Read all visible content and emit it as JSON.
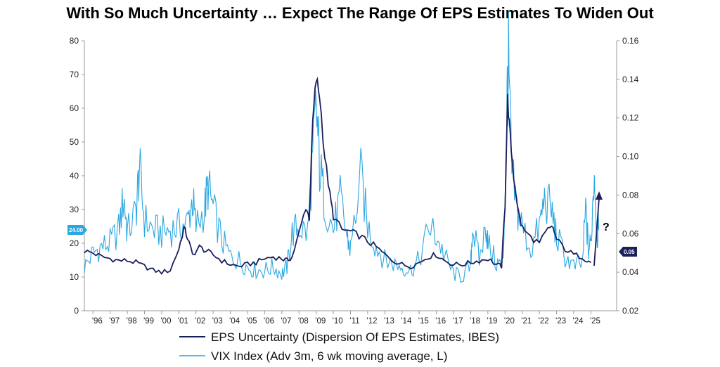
{
  "chart_data": {
    "type": "line",
    "title": "With So Much Uncertainty … Expect The Range Of EPS Estimates To Widen Out",
    "y_left": {
      "ticks": [
        "0",
        "10",
        "20",
        "30",
        "40",
        "50",
        "60",
        "70",
        "80"
      ],
      "range": [
        0,
        80
      ]
    },
    "y_right": {
      "ticks": [
        "0.02",
        "0.04",
        "0.06",
        "0.08",
        "0.10",
        "0.12",
        "0.14",
        "0.16"
      ],
      "range": [
        0.02,
        0.16
      ]
    },
    "x": {
      "range": [
        1995.5,
        2026.5
      ],
      "tick_labels": [
        "'96",
        "'97",
        "'98",
        "'99",
        "'00",
        "'01",
        "'02",
        "'03",
        "'04",
        "'05",
        "'06",
        "'07",
        "'08",
        "'09",
        "'10",
        "'11",
        "'12",
        "'13",
        "'14",
        "'15",
        "'16",
        "'17",
        "'18",
        "'19",
        "'20",
        "'21",
        "'22",
        "'23",
        "'24",
        "'25"
      ]
    },
    "last_value_badges": {
      "left": "24.00",
      "right": "0.05"
    },
    "annotation": "?",
    "series": [
      {
        "name": "EPS Uncertainty (Dispersion Of EPS Estimates, IBES",
        "axis": "right",
        "color": "#1b1f5e",
        "points": [
          [
            1995.5,
            0.051
          ],
          [
            1996.0,
            0.05
          ],
          [
            1996.5,
            0.048
          ],
          [
            1997.0,
            0.047
          ],
          [
            1997.5,
            0.046
          ],
          [
            1998.0,
            0.046
          ],
          [
            1998.5,
            0.045
          ],
          [
            1999.0,
            0.043
          ],
          [
            1999.5,
            0.041
          ],
          [
            2000.0,
            0.04
          ],
          [
            2000.5,
            0.041
          ],
          [
            2001.0,
            0.052
          ],
          [
            2001.3,
            0.063
          ],
          [
            2001.5,
            0.058
          ],
          [
            2001.8,
            0.049
          ],
          [
            2002.2,
            0.053
          ],
          [
            2002.6,
            0.051
          ],
          [
            2003.0,
            0.049
          ],
          [
            2003.5,
            0.046
          ],
          [
            2004.0,
            0.044
          ],
          [
            2004.5,
            0.043
          ],
          [
            2005.0,
            0.044
          ],
          [
            2005.5,
            0.045
          ],
          [
            2006.0,
            0.047
          ],
          [
            2006.5,
            0.048
          ],
          [
            2007.0,
            0.047
          ],
          [
            2007.3,
            0.046
          ],
          [
            2007.6,
            0.048
          ],
          [
            2008.0,
            0.06
          ],
          [
            2008.4,
            0.074
          ],
          [
            2008.6,
            0.068
          ],
          [
            2008.8,
            0.118
          ],
          [
            2009.0,
            0.14
          ],
          [
            2009.2,
            0.132
          ],
          [
            2009.5,
            0.1
          ],
          [
            2009.8,
            0.08
          ],
          [
            2010.0,
            0.069
          ],
          [
            2010.5,
            0.062
          ],
          [
            2011.0,
            0.061
          ],
          [
            2011.5,
            0.059
          ],
          [
            2012.0,
            0.056
          ],
          [
            2012.5,
            0.053
          ],
          [
            2013.0,
            0.049
          ],
          [
            2013.5,
            0.046
          ],
          [
            2014.0,
            0.044
          ],
          [
            2014.5,
            0.043
          ],
          [
            2015.0,
            0.045
          ],
          [
            2015.5,
            0.048
          ],
          [
            2016.0,
            0.049
          ],
          [
            2016.5,
            0.046
          ],
          [
            2017.0,
            0.044
          ],
          [
            2017.5,
            0.044
          ],
          [
            2018.0,
            0.045
          ],
          [
            2018.5,
            0.046
          ],
          [
            2019.0,
            0.047
          ],
          [
            2019.5,
            0.044
          ],
          [
            2019.8,
            0.043
          ],
          [
            2020.0,
            0.075
          ],
          [
            2020.15,
            0.13
          ],
          [
            2020.3,
            0.11
          ],
          [
            2020.5,
            0.09
          ],
          [
            2020.8,
            0.07
          ],
          [
            2021.0,
            0.063
          ],
          [
            2021.5,
            0.058
          ],
          [
            2022.0,
            0.055
          ],
          [
            2022.5,
            0.062
          ],
          [
            2022.8,
            0.063
          ],
          [
            2023.0,
            0.057
          ],
          [
            2023.5,
            0.052
          ],
          [
            2024.0,
            0.049
          ],
          [
            2024.5,
            0.048
          ],
          [
            2024.8,
            0.046
          ],
          [
            2025.0,
            0.045
          ]
        ]
      },
      {
        "name": "VIX Index (Adv 3m, 6 wk moving average, L)",
        "axis": "left",
        "color": "#2aa7e0",
        "points": [
          [
            1995.5,
            13
          ],
          [
            1996.0,
            17
          ],
          [
            1996.5,
            19
          ],
          [
            1997.0,
            20
          ],
          [
            1997.5,
            24
          ],
          [
            1997.8,
            34
          ],
          [
            1998.0,
            23
          ],
          [
            1998.5,
            29
          ],
          [
            1998.7,
            42
          ],
          [
            1999.0,
            27
          ],
          [
            1999.5,
            24
          ],
          [
            2000.0,
            23
          ],
          [
            2000.5,
            24
          ],
          [
            2001.0,
            25
          ],
          [
            2001.5,
            26
          ],
          [
            2001.8,
            33
          ],
          [
            2002.0,
            25
          ],
          [
            2002.5,
            30
          ],
          [
            2002.7,
            37
          ],
          [
            2003.0,
            30
          ],
          [
            2003.5,
            21
          ],
          [
            2004.0,
            16
          ],
          [
            2004.5,
            15
          ],
          [
            2005.0,
            13
          ],
          [
            2005.5,
            12
          ],
          [
            2006.0,
            12
          ],
          [
            2006.5,
            13
          ],
          [
            2007.0,
            11
          ],
          [
            2007.3,
            13
          ],
          [
            2007.6,
            23
          ],
          [
            2008.0,
            25
          ],
          [
            2008.5,
            23
          ],
          [
            2008.8,
            45
          ],
          [
            2009.0,
            60
          ],
          [
            2009.2,
            43
          ],
          [
            2009.5,
            32
          ],
          [
            2010.0,
            24
          ],
          [
            2010.4,
            33
          ],
          [
            2010.8,
            22
          ],
          [
            2011.0,
            18
          ],
          [
            2011.6,
            40
          ],
          [
            2012.0,
            25
          ],
          [
            2012.5,
            19
          ],
          [
            2013.0,
            15
          ],
          [
            2013.5,
            14
          ],
          [
            2014.0,
            13
          ],
          [
            2014.5,
            12
          ],
          [
            2015.0,
            15
          ],
          [
            2015.6,
            25
          ],
          [
            2016.0,
            22
          ],
          [
            2016.5,
            16
          ],
          [
            2017.0,
            11
          ],
          [
            2017.5,
            10
          ],
          [
            2018.0,
            13
          ],
          [
            2018.1,
            25
          ],
          [
            2018.5,
            15
          ],
          [
            2018.9,
            25
          ],
          [
            2019.0,
            20
          ],
          [
            2019.5,
            14
          ],
          [
            2019.9,
            14
          ],
          [
            2020.1,
            60
          ],
          [
            2020.2,
            73
          ],
          [
            2020.4,
            40
          ],
          [
            2020.7,
            30
          ],
          [
            2021.0,
            25
          ],
          [
            2021.5,
            18
          ],
          [
            2022.0,
            25
          ],
          [
            2022.3,
            33
          ],
          [
            2022.7,
            30
          ],
          [
            2023.0,
            22
          ],
          [
            2023.5,
            16
          ],
          [
            2024.0,
            13
          ],
          [
            2024.5,
            14
          ],
          [
            2024.7,
            30
          ],
          [
            2024.85,
            18
          ],
          [
            2025.0,
            20
          ],
          [
            2025.2,
            42
          ],
          [
            2025.35,
            22
          ],
          [
            2025.45,
            24
          ]
        ]
      }
    ]
  },
  "legend": {
    "eps_label": "EPS Uncertainty (Dispersion Of EPS Estimates, IBES)",
    "vix_label": "VIX Index (Adv 3m, 6 wk moving average, L)"
  },
  "colors": {
    "eps": "#1b1f5e",
    "vix": "#2aa7e0",
    "axis": "#9a9a9a",
    "arrow": "#1b1f5e"
  }
}
